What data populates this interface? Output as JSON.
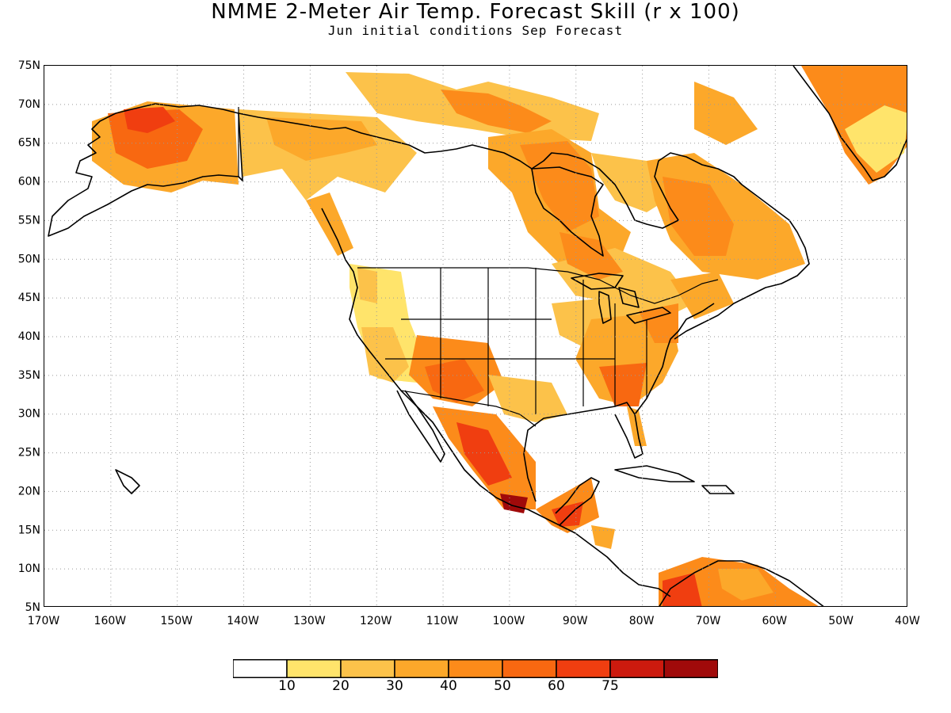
{
  "title": "NMME 2-Meter Air Temp. Forecast Skill (r x 100)",
  "subtitle": "Jun initial conditions  Sep Forecast",
  "map": {
    "lat_labels": [
      "75N",
      "70N",
      "65N",
      "60N",
      "55N",
      "50N",
      "45N",
      "40N",
      "35N",
      "30N",
      "25N",
      "20N",
      "15N",
      "10N",
      "5N"
    ],
    "lon_labels": [
      "170W",
      "160W",
      "150W",
      "140W",
      "130W",
      "120W",
      "110W",
      "100W",
      "90W",
      "80W",
      "70W",
      "60W",
      "50W",
      "40W"
    ],
    "lat_range": [
      5,
      75
    ],
    "lon_range": [
      -170,
      -40
    ],
    "grid": "dotted"
  },
  "colorbar": {
    "colors": [
      "#ffffff",
      "#ffe46b",
      "#fcc24a",
      "#fca82a",
      "#fc8b1a",
      "#f86811",
      "#f03e10",
      "#cc1a0e",
      "#a00a0a"
    ],
    "labels": [
      "10",
      "20",
      "30",
      "40",
      "50",
      "60",
      "75"
    ]
  }
}
